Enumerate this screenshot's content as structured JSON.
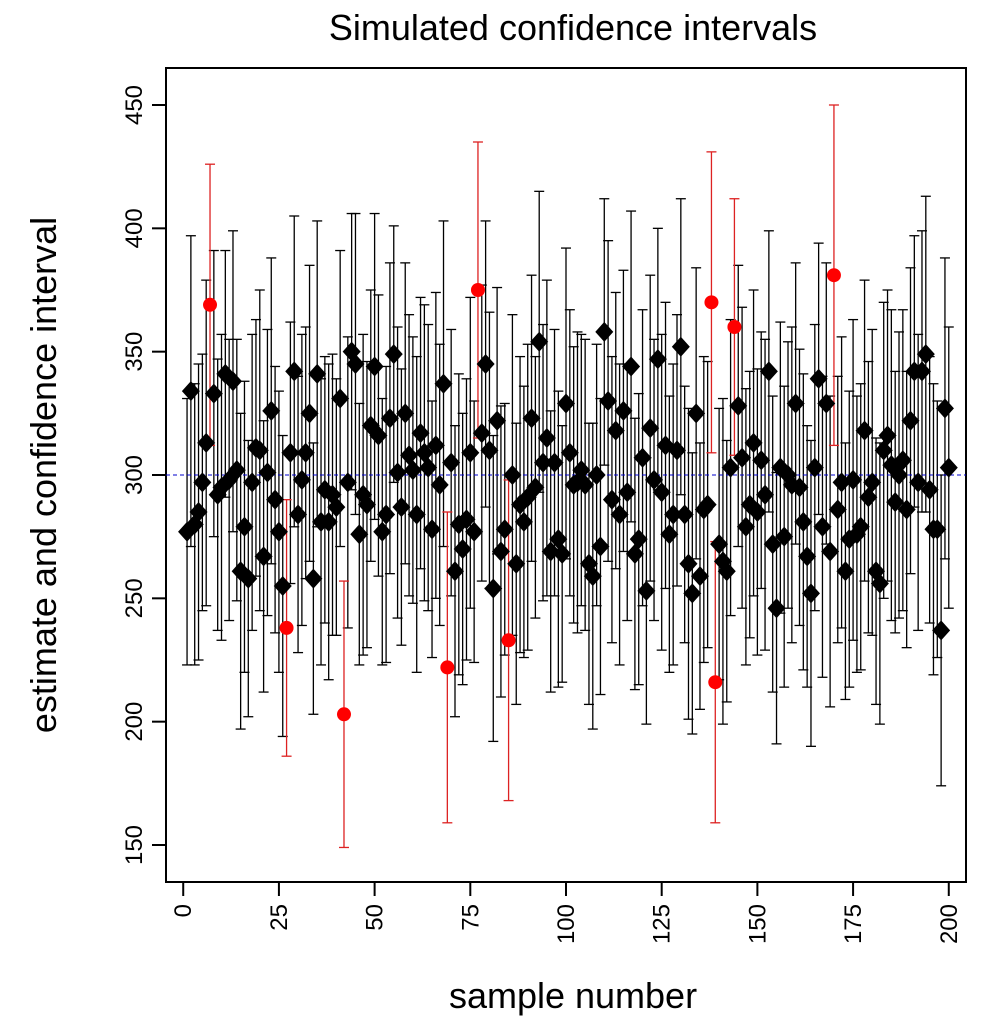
{
  "chart_data": {
    "type": "errorbar_scatter",
    "title": "Simulated confidence intervals",
    "xlabel": "sample number",
    "ylabel": "estimate and confidence interval",
    "xlim": [
      -4.5,
      204.5
    ],
    "ylim": [
      135,
      465
    ],
    "xticks": [
      0,
      25,
      50,
      75,
      100,
      125,
      150,
      175,
      200
    ],
    "yticks": [
      150,
      200,
      250,
      300,
      350,
      400,
      450
    ],
    "reference_line": {
      "value": 300,
      "color": "#0000cc",
      "style": "dashed"
    },
    "series": [
      {
        "color": "#000000",
        "marker": "diamond",
        "bar_color": "#000000",
        "x": [
          1,
          2,
          3,
          4,
          5,
          6,
          8,
          9,
          10,
          11,
          12,
          13,
          14,
          15,
          16,
          17,
          18,
          19,
          20,
          21,
          22,
          23,
          24,
          25,
          26,
          28,
          29,
          30,
          31,
          32,
          33,
          34,
          35,
          36,
          37,
          38,
          39,
          40,
          41,
          43,
          44,
          45,
          46,
          47,
          48,
          49,
          50,
          51,
          52,
          53,
          54,
          55,
          56,
          57,
          58,
          59,
          60,
          61,
          62,
          63,
          64,
          65,
          66,
          67,
          68,
          70,
          71,
          72,
          73,
          74,
          75,
          76,
          78,
          79,
          80,
          81,
          82,
          83,
          84,
          86,
          87,
          88,
          89,
          90,
          91,
          92,
          93,
          94,
          95,
          96,
          97,
          98,
          99,
          100,
          101,
          102,
          103,
          104,
          105,
          106,
          107,
          108,
          109,
          110,
          111,
          112,
          113,
          114,
          115,
          116,
          117,
          118,
          119,
          120,
          121,
          122,
          123,
          124,
          125,
          126,
          127,
          128,
          129,
          130,
          131,
          132,
          133,
          134,
          135,
          136,
          137,
          140,
          141,
          142,
          143,
          145,
          146,
          147,
          148,
          149,
          150,
          151,
          152,
          153,
          154,
          155,
          156,
          157,
          158,
          159,
          160,
          161,
          162,
          163,
          164,
          165,
          166,
          167,
          168,
          169,
          171,
          172,
          173,
          174,
          175,
          176,
          177,
          178,
          179,
          180,
          181,
          182,
          183,
          184,
          185,
          186,
          187,
          188,
          189,
          190,
          191,
          192,
          193,
          194,
          195,
          196,
          197,
          198,
          199,
          200
        ],
        "values": [
          277,
          334,
          280,
          285,
          297,
          313,
          333,
          292,
          295,
          341,
          298,
          338,
          302,
          261,
          279,
          258,
          297,
          311,
          310,
          267,
          301,
          326,
          290,
          277,
          255,
          309,
          342,
          284,
          298,
          309,
          325,
          258,
          341,
          281,
          294,
          281,
          292,
          287,
          331,
          297,
          350,
          345,
          276,
          292,
          288,
          320,
          344,
          316,
          277,
          284,
          323,
          349,
          301,
          287,
          325,
          308,
          302,
          284,
          317,
          309,
          303,
          278,
          312,
          296,
          337,
          305,
          261,
          280,
          270,
          282,
          309,
          277,
          317,
          345,
          310,
          254,
          322,
          269,
          278,
          300,
          264,
          288,
          281,
          291,
          323,
          295,
          354,
          305,
          315,
          269,
          305,
          274,
          268,
          329,
          309,
          296,
          297,
          302,
          296,
          264,
          259,
          300,
          271,
          358,
          330,
          290,
          318,
          284,
          326,
          293,
          344,
          268,
          274,
          307,
          253,
          319,
          298,
          347,
          293,
          312,
          276,
          284,
          310,
          352,
          284,
          264,
          252,
          325,
          259,
          286,
          288,
          272,
          265,
          261,
          303,
          328,
          307,
          279,
          288,
          313,
          285,
          306,
          292,
          342,
          272,
          246,
          303,
          275,
          300,
          296,
          329,
          295,
          281,
          267,
          252,
          303,
          339,
          279,
          329,
          269,
          286,
          297,
          261,
          274,
          298,
          276,
          279,
          318,
          291,
          297,
          261,
          256,
          310,
          316,
          304,
          289,
          300,
          306,
          286,
          322,
          342,
          297,
          342,
          349,
          294,
          278,
          278,
          237,
          327,
          303
        ],
        "errors": [
          54,
          63,
          57,
          60,
          52,
          66,
          58,
          55,
          62,
          50,
          57,
          61,
          53,
          64,
          59,
          56,
          60,
          52,
          65,
          55,
          58,
          62,
          54,
          57,
          61,
          53,
          63,
          56,
          59,
          51,
          60,
          55,
          62,
          58,
          54,
          64,
          57,
          52,
          60,
          59,
          56,
          61,
          53,
          65,
          58,
          55,
          62,
          57,
          54,
          60,
          63,
          52,
          59,
          56,
          61,
          57,
          54,
          64,
          55,
          60,
          58,
          52,
          62,
          57,
          66,
          54,
          59,
          61,
          55,
          57,
          63,
          53,
          60,
          58,
          56,
          62,
          54,
          59,
          51,
          65,
          57,
          60,
          55,
          62,
          58,
          53,
          61,
          56,
          64,
          57,
          54,
          60,
          52,
          63,
          58,
          56,
          61,
          55,
          59,
          57,
          62,
          53,
          60,
          54,
          65,
          58,
          56,
          61,
          57,
          52,
          63,
          55,
          59,
          60,
          54,
          62,
          57,
          53,
          64,
          58,
          56,
          61,
          55,
          60,
          52,
          63,
          57,
          59,
          54,
          62,
          58,
          55,
          66,
          53,
          60,
          57,
          61,
          56,
          54,
          62,
          58,
          52,
          63,
          57,
          60,
          55,
          59,
          61,
          54,
          64,
          57,
          56,
          60,
          53,
          62,
          58,
          55,
          61,
          57,
          63,
          54,
          59,
          52,
          60,
          65,
          56,
          58,
          61,
          55,
          62,
          54,
          57,
          60,
          59,
          63,
          53,
          58,
          61,
          56,
          62,
          55,
          60,
          57,
          64,
          54,
          59,
          52,
          63,
          61,
          57
        ]
      },
      {
        "color": "#ff0000",
        "marker": "circle",
        "bar_color": "#dd2222",
        "x": [
          7,
          27,
          42,
          69,
          77,
          85,
          138,
          139,
          144,
          170
        ],
        "values": [
          369,
          238,
          203,
          222,
          375,
          233,
          370,
          216,
          360,
          381
        ],
        "errors": [
          57,
          52,
          54,
          63,
          60,
          65,
          61,
          57,
          52,
          69
        ]
      }
    ]
  }
}
